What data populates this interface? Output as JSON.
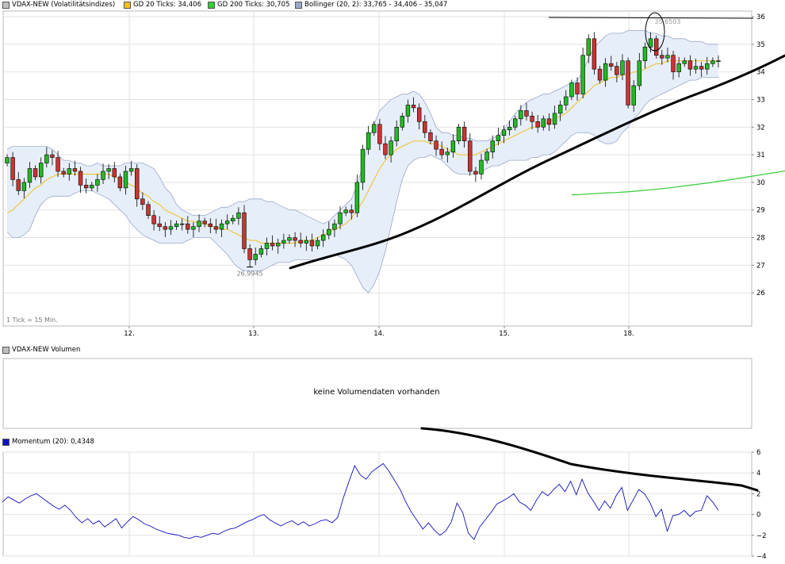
{
  "legend": {
    "items": [
      {
        "label": "VDAX-NEW (Volatilitätsindizes)",
        "color": "#c0c0c0"
      },
      {
        "label": "GD 20 Ticks: 34,406",
        "color": "#f0c020"
      },
      {
        "label": "GD 200 Ticks: 30,705",
        "color": "#33cc33"
      },
      {
        "label": "Bollinger (20, 2): 33,765 - 34,406 - 35,047",
        "color": "#9aa8c8"
      }
    ]
  },
  "tick_info": "1 Tick = 15 Min.",
  "volume": {
    "title": "VDAX-NEW Volumen",
    "swatch": "#c0c0c0",
    "message": "keine Volumendaten vorhanden"
  },
  "momentum_legend": {
    "title": "Momentum (20): 0,4348",
    "swatch": "#1010c0"
  },
  "annotations": {
    "low": "26,9945",
    "high": "35,6503"
  },
  "chart_data": [
    {
      "type": "candlestick",
      "x_labels": [
        "12.",
        "13.",
        "14.",
        "15.",
        "18."
      ],
      "yticks": [
        26,
        27,
        28,
        29,
        30,
        31,
        32,
        33,
        34,
        35,
        36
      ],
      "ylim": [
        24.8,
        36.2
      ],
      "y_axis_position": "right",
      "grid": true,
      "colors": {
        "up": "#22bb22",
        "down": "#cc3333",
        "bb_fill": "#e6eefa",
        "bb_line": "#9aa8c8",
        "gd20": "#f0c020",
        "gd200": "#33cc33"
      },
      "close": [
        30.9,
        30.1,
        29.7,
        30.0,
        30.5,
        30.2,
        30.7,
        31.0,
        30.9,
        30.4,
        30.3,
        30.5,
        30.4,
        29.9,
        29.8,
        29.9,
        30.1,
        30.4,
        30.5,
        30.2,
        29.8,
        30.4,
        30.5,
        29.4,
        29.2,
        28.8,
        28.5,
        28.4,
        28.3,
        28.4,
        28.5,
        28.5,
        28.3,
        28.4,
        28.6,
        28.5,
        28.4,
        28.3,
        28.5,
        28.6,
        28.7,
        28.9,
        27.6,
        27.2,
        27.4,
        27.6,
        27.8,
        27.7,
        27.8,
        27.9,
        28.0,
        27.9,
        27.8,
        27.9,
        27.7,
        27.9,
        28.1,
        28.3,
        28.5,
        28.9,
        29.0,
        28.9,
        30.0,
        31.2,
        31.8,
        32.1,
        31.4,
        31.0,
        31.5,
        32.0,
        32.4,
        32.8,
        32.7,
        32.2,
        31.8,
        31.5,
        31.2,
        31.0,
        31.1,
        31.5,
        32.0,
        31.5,
        30.4,
        30.3,
        30.8,
        31.1,
        31.5,
        31.7,
        31.9,
        32.0,
        32.3,
        32.6,
        32.4,
        32.2,
        32.0,
        32.3,
        32.1,
        32.5,
        32.8,
        33.1,
        33.6,
        33.2,
        34.6,
        35.2,
        34.1,
        33.7,
        34.3,
        34.2,
        33.9,
        34.4,
        32.8,
        33.5,
        34.4,
        34.9,
        35.2,
        34.6,
        34.5,
        34.6,
        34.0,
        34.3,
        34.4,
        34.1,
        34.2,
        34.1,
        34.3,
        34.4,
        34.4
      ],
      "bb_upper": [
        31.2,
        31.3,
        31.3,
        31.3,
        31.3,
        31.3,
        31.3,
        31.3,
        31.2,
        31.0,
        30.8,
        30.8,
        30.7,
        30.7,
        30.6,
        30.6,
        30.7,
        30.6,
        30.6,
        30.6,
        30.6,
        30.7,
        30.7,
        30.7,
        30.7,
        30.6,
        30.5,
        30.2,
        29.8,
        29.6,
        29.2,
        29.0,
        28.9,
        28.8,
        28.8,
        28.8,
        28.9,
        29.0,
        29.1,
        29.1,
        29.2,
        29.3,
        29.3,
        29.4,
        29.4,
        29.4,
        29.3,
        29.3,
        29.2,
        29.1,
        29.0,
        29.0,
        28.9,
        28.8,
        28.7,
        28.6,
        28.5,
        28.6,
        28.8,
        29.0,
        29.2,
        29.4,
        29.9,
        30.6,
        31.5,
        32.1,
        32.6,
        32.8,
        33.0,
        33.1,
        33.2,
        33.2,
        33.3,
        33.2,
        32.9,
        32.5,
        32.0,
        31.8,
        31.8,
        31.7,
        31.7,
        31.6,
        31.6,
        31.5,
        31.5,
        31.5,
        31.6,
        31.7,
        31.9,
        32.2,
        32.5,
        32.7,
        32.9,
        33.0,
        33.1,
        33.2,
        33.2,
        33.3,
        33.4,
        33.5,
        33.6,
        33.7,
        34.0,
        34.5,
        34.9,
        35.1,
        35.3,
        35.4,
        35.4,
        35.4,
        35.5,
        35.5,
        35.5,
        35.5,
        35.4,
        35.4,
        35.3,
        35.3,
        35.2,
        35.2,
        35.2,
        35.1,
        35.1,
        35.1,
        35.0,
        35.0,
        35.0
      ],
      "bb_lower": [
        28.2,
        28.0,
        28.0,
        28.1,
        28.3,
        28.8,
        29.2,
        29.4,
        29.5,
        29.5,
        29.5,
        29.5,
        29.6,
        29.7,
        29.7,
        29.7,
        29.6,
        29.5,
        29.4,
        29.2,
        29.0,
        28.8,
        28.5,
        28.3,
        28.1,
        28.0,
        27.9,
        27.8,
        27.8,
        27.8,
        27.8,
        27.8,
        27.9,
        28.0,
        28.0,
        28.0,
        28.0,
        27.8,
        27.6,
        27.4,
        27.1,
        26.9,
        26.8,
        26.8,
        26.8,
        26.8,
        26.9,
        27.0,
        27.1,
        27.1,
        27.1,
        27.2,
        27.2,
        27.2,
        27.2,
        27.2,
        27.2,
        27.3,
        27.4,
        27.3,
        27.2,
        27.0,
        26.6,
        26.2,
        26.0,
        26.3,
        26.8,
        27.5,
        28.4,
        29.3,
        30.1,
        30.6,
        30.8,
        30.9,
        30.9,
        31.0,
        30.9,
        30.8,
        30.6,
        30.4,
        30.3,
        30.3,
        30.3,
        30.3,
        30.4,
        30.5,
        30.6,
        30.6,
        30.7,
        30.8,
        30.8,
        30.8,
        30.8,
        30.9,
        30.9,
        31.0,
        31.0,
        31.1,
        31.3,
        31.5,
        31.7,
        31.8,
        31.8,
        31.8,
        31.7,
        31.5,
        31.4,
        31.4,
        31.5,
        31.8,
        32.0,
        32.3,
        32.5,
        32.8,
        33.0,
        33.1,
        33.2,
        33.3,
        33.4,
        33.5,
        33.6,
        33.7,
        33.7,
        33.8,
        33.8,
        33.8,
        33.8
      ],
      "gd20": [
        28.9,
        29.0,
        29.2,
        29.4,
        29.6,
        29.8,
        29.9,
        30.1,
        30.2,
        30.3,
        30.3,
        30.3,
        30.3,
        30.3,
        30.3,
        30.3,
        30.3,
        30.3,
        30.3,
        30.2,
        30.1,
        30.0,
        29.9,
        29.8,
        29.6,
        29.5,
        29.3,
        29.2,
        29.0,
        28.9,
        28.8,
        28.7,
        28.6,
        28.6,
        28.5,
        28.5,
        28.4,
        28.4,
        28.3,
        28.3,
        28.2,
        28.1,
        28.0,
        27.9,
        27.9,
        27.8,
        27.8,
        27.8,
        27.8,
        27.8,
        27.8,
        27.8,
        27.9,
        27.9,
        27.9,
        28.0,
        28.1,
        28.2,
        28.3,
        28.4,
        28.5,
        28.7,
        29.0,
        29.3,
        29.7,
        30.1,
        30.5,
        30.8,
        31.0,
        31.2,
        31.3,
        31.4,
        31.5,
        31.5,
        31.5,
        31.4,
        31.4,
        31.3,
        31.2,
        31.1,
        31.0,
        31.0,
        31.0,
        31.0,
        31.1,
        31.2,
        31.3,
        31.4,
        31.5,
        31.6,
        31.7,
        31.8,
        31.9,
        32.0,
        32.0,
        32.1,
        32.2,
        32.3,
        32.4,
        32.5,
        32.7,
        32.9,
        33.1,
        33.3,
        33.5,
        33.6,
        33.7,
        33.8,
        33.8,
        33.9,
        33.9,
        34.0,
        34.0,
        34.1,
        34.2,
        34.3,
        34.3,
        34.4,
        34.4,
        34.4,
        34.4,
        34.4,
        34.4,
        34.4,
        34.4,
        34.4,
        34.4
      ],
      "gd200": {
        "x_start_index": 100,
        "x_end_index": 146,
        "values": [
          29.55,
          29.56,
          29.58,
          29.6,
          29.62,
          29.63,
          29.65,
          29.67,
          29.7,
          29.73,
          29.76,
          29.79,
          29.83,
          29.87,
          29.91,
          29.95,
          29.99,
          30.04,
          30.08,
          30.13,
          30.18,
          30.23,
          30.28,
          30.33,
          30.38,
          30.44,
          30.5,
          30.55,
          30.6,
          30.65,
          30.7
        ]
      },
      "annotation_low": {
        "index": 43,
        "value": 26.9945
      },
      "annotation_high": {
        "index": 117,
        "value": 35.6503
      }
    },
    {
      "type": "line",
      "name": "Momentum (20)",
      "yticks": [
        -4,
        -2,
        0,
        2,
        4,
        6
      ],
      "ylim": [
        -4,
        6
      ],
      "y_axis_position": "right",
      "grid": true,
      "color": "#1010c0",
      "values": [
        1.2,
        1.7,
        1.4,
        1.1,
        1.5,
        1.8,
        2.0,
        1.6,
        1.2,
        0.8,
        0.5,
        0.9,
        0.4,
        -0.3,
        -0.8,
        -0.4,
        -0.9,
        -0.6,
        -1.2,
        -0.8,
        -0.4,
        -1.3,
        -0.7,
        -0.2,
        -0.5,
        -0.9,
        -1.1,
        -1.4,
        -1.6,
        -1.8,
        -1.9,
        -2.0,
        -2.2,
        -2.3,
        -2.1,
        -2.2,
        -2.0,
        -1.8,
        -1.9,
        -1.6,
        -1.4,
        -1.3,
        -1.0,
        -0.7,
        -0.5,
        -0.2,
        0.0,
        -0.5,
        -0.8,
        -1.1,
        -0.8,
        -0.6,
        -1.0,
        -0.7,
        -1.1,
        -0.9,
        -0.6,
        -0.5,
        -0.8,
        -0.3,
        1.6,
        3.2,
        4.7,
        3.8,
        3.4,
        4.1,
        4.5,
        4.9,
        4.2,
        3.3,
        2.4,
        1.2,
        0.2,
        -0.6,
        -1.4,
        -0.8,
        -1.5,
        -2.0,
        -1.6,
        -0.7,
        1.1,
        0.2,
        -1.8,
        -2.4,
        -1.2,
        -0.5,
        0.2,
        1.0,
        1.3,
        1.6,
        2.0,
        1.2,
        0.9,
        0.4,
        1.4,
        2.2,
        1.8,
        2.4,
        2.9,
        2.2,
        3.2,
        1.9,
        3.4,
        2.1,
        1.3,
        0.4,
        1.3,
        0.6,
        1.8,
        2.6,
        0.4,
        1.4,
        2.4,
        2.0,
        1.1,
        -0.2,
        0.5,
        -1.6,
        -0.1,
        0.0,
        0.4,
        -0.2,
        0.3,
        0.4,
        1.8,
        1.2,
        0.4
      ]
    }
  ]
}
